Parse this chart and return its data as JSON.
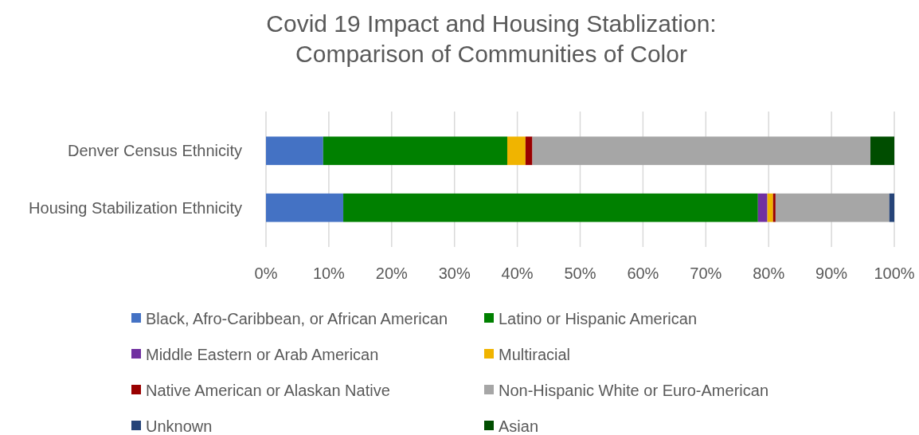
{
  "chart_data": {
    "type": "bar",
    "orientation": "horizontal",
    "stacked": true,
    "title": "Covid 19 Impact and Housing Stablization:\nComparison of Communities of Color",
    "categories": [
      "Denver Census Ethnicity",
      "Housing Stabilization Ethnicity"
    ],
    "series": [
      {
        "name": "Black, Afro-Caribbean, or African American",
        "color": "#4472c4",
        "values": [
          9.1,
          12.3
        ]
      },
      {
        "name": "Latino or Hispanic American",
        "color": "#008000",
        "values": [
          29.3,
          66.0
        ]
      },
      {
        "name": "Middle Eastern or Arab American",
        "color": "#7030a0",
        "values": [
          0,
          1.5
        ]
      },
      {
        "name": "Multiracial",
        "color": "#f0b400",
        "values": [
          2.9,
          0.9
        ]
      },
      {
        "name": "Native American or Alaskan Native",
        "color": "#990000",
        "values": [
          1.1,
          0.4
        ]
      },
      {
        "name": "Non-Hispanic White or Euro-American",
        "color": "#a6a6a6",
        "values": [
          53.8,
          18.1
        ]
      },
      {
        "name": "Unknown",
        "color": "#264478",
        "values": [
          0,
          0.8
        ]
      },
      {
        "name": "Asian",
        "color": "#004d00",
        "values": [
          3.8,
          0
        ]
      }
    ],
    "xlim": [
      0,
      100
    ],
    "xticks": [
      {
        "value": 0,
        "label": "0%"
      },
      {
        "value": 10,
        "label": "10%"
      },
      {
        "value": 20,
        "label": "20%"
      },
      {
        "value": 30,
        "label": "30%"
      },
      {
        "value": 40,
        "label": "40%"
      },
      {
        "value": 50,
        "label": "50%"
      },
      {
        "value": 60,
        "label": "60%"
      },
      {
        "value": 70,
        "label": "70%"
      },
      {
        "value": 80,
        "label": "80%"
      },
      {
        "value": 90,
        "label": "90%"
      },
      {
        "value": 100,
        "label": "100%"
      }
    ],
    "grid": "x",
    "legend": "bottom"
  }
}
